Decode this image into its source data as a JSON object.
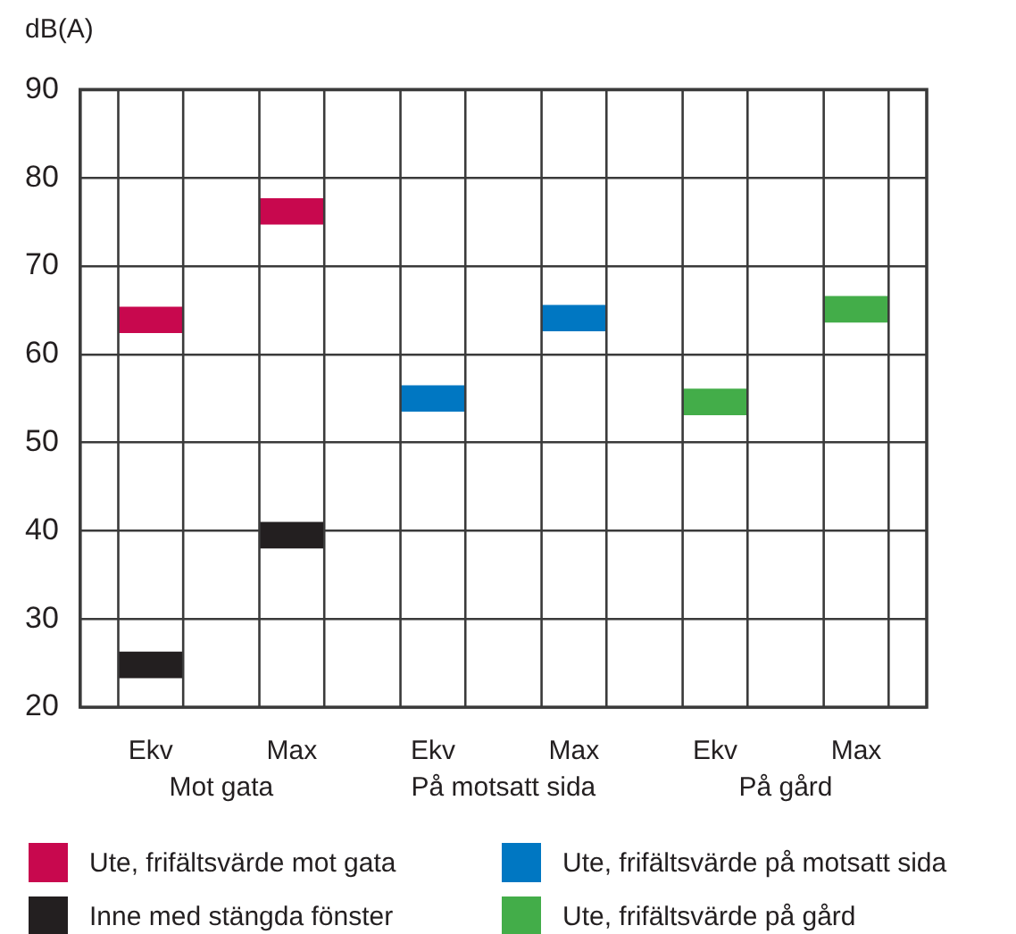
{
  "chart_data": {
    "type": "bar",
    "ylabel": "dB(A)",
    "categories": [
      "Ekv",
      "Max",
      "Ekv",
      "Max",
      "Ekv",
      "Max"
    ],
    "annotations": [
      "Mot gata",
      "På motsatt sida",
      "På gård"
    ],
    "series": [
      {
        "name": "Ute, frifältsvärde mot gata",
        "color": "#c8084e",
        "base": [
          62.4,
          74.7,
          null,
          null,
          null,
          null
        ],
        "values": [
          3,
          3,
          null,
          null,
          null,
          null
        ]
      },
      {
        "name": "Inne med stängda fönster",
        "color": "#231f20",
        "base": [
          23.3,
          38.0,
          null,
          null,
          null,
          null
        ],
        "values": [
          3,
          3,
          null,
          null,
          null,
          null
        ]
      },
      {
        "name": "Ute, frifältsvärde på motsatt sida",
        "color": "#0077c2",
        "base": [
          null,
          null,
          53.5,
          62.6,
          null,
          null
        ],
        "values": [
          null,
          null,
          3,
          3,
          null,
          null
        ]
      },
      {
        "name": "Ute, frifältsvärde på gård",
        "color": "#43ad49",
        "base": [
          null,
          null,
          null,
          null,
          53.1,
          63.6
        ],
        "values": [
          null,
          null,
          null,
          null,
          3,
          3
        ]
      }
    ],
    "ylim": [
      20,
      90
    ],
    "yticks": [
      20,
      30,
      40,
      50,
      60,
      70,
      80,
      90
    ],
    "grid": true,
    "legend": "bottom"
  }
}
